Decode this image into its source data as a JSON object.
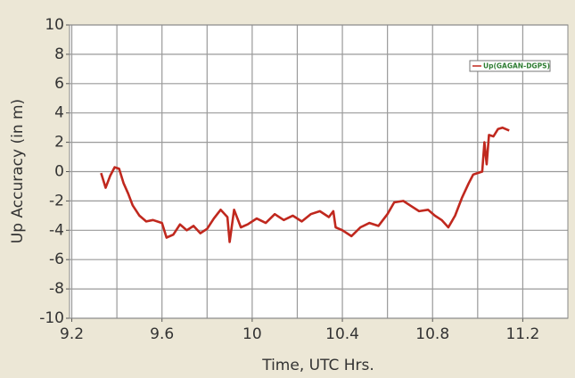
{
  "chart_data": {
    "type": "line",
    "xlabel": "Time, UTC Hrs.",
    "ylabel": "Up Accuracy (in m)",
    "xlim": [
      9.19,
      11.4
    ],
    "ylim": [
      -10,
      10
    ],
    "xticks": [
      9.2,
      9.6,
      10,
      10.4,
      10.8,
      11.2
    ],
    "xgrid": [
      9.4,
      9.8,
      10.2,
      10.6,
      11.0
    ],
    "yticks": [
      -10,
      -8,
      -6,
      -4,
      -2,
      0,
      2,
      4,
      6,
      8,
      10
    ],
    "grid": true,
    "legend": "upper right",
    "series": [
      {
        "name": "Up(GAGAN-DGPS)",
        "color": "#c0281e",
        "x": [
          9.33,
          9.35,
          9.37,
          9.39,
          9.41,
          9.43,
          9.45,
          9.47,
          9.5,
          9.53,
          9.56,
          9.6,
          9.62,
          9.65,
          9.68,
          9.71,
          9.74,
          9.77,
          9.8,
          9.83,
          9.86,
          9.89,
          9.9,
          9.92,
          9.95,
          9.98,
          10.02,
          10.06,
          10.1,
          10.14,
          10.18,
          10.22,
          10.26,
          10.3,
          10.34,
          10.36,
          10.37,
          10.4,
          10.44,
          10.48,
          10.52,
          10.56,
          10.6,
          10.63,
          10.67,
          10.7,
          10.74,
          10.78,
          10.81,
          10.84,
          10.87,
          10.9,
          10.93,
          10.96,
          10.98,
          11.0,
          11.02,
          11.03,
          11.04,
          11.05,
          11.07,
          11.09,
          11.11,
          11.14
        ],
        "values": [
          -0.1,
          -1.1,
          -0.3,
          0.3,
          0.2,
          -0.8,
          -1.5,
          -2.3,
          -3.0,
          -3.4,
          -3.3,
          -3.5,
          -4.5,
          -4.3,
          -3.6,
          -4.0,
          -3.7,
          -4.2,
          -3.9,
          -3.2,
          -2.6,
          -3.1,
          -4.8,
          -2.6,
          -3.8,
          -3.6,
          -3.2,
          -3.5,
          -2.9,
          -3.3,
          -3.0,
          -3.4,
          -2.9,
          -2.7,
          -3.1,
          -2.7,
          -3.8,
          -4.0,
          -4.4,
          -3.8,
          -3.5,
          -3.7,
          -2.9,
          -2.1,
          -2.0,
          -2.3,
          -2.7,
          -2.6,
          -3.0,
          -3.3,
          -3.8,
          -3.0,
          -1.8,
          -0.8,
          -0.2,
          -0.1,
          0.0,
          2.0,
          0.5,
          2.5,
          2.4,
          2.9,
          3.0,
          2.8
        ]
      }
    ]
  }
}
